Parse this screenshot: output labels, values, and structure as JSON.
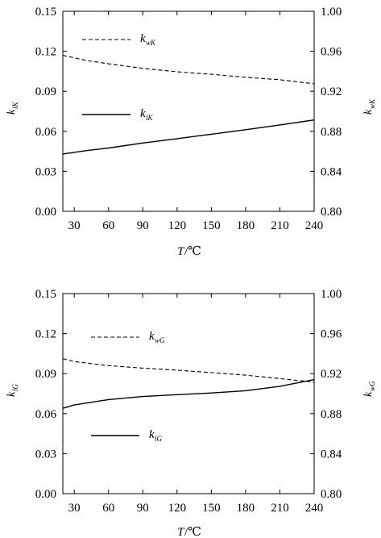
{
  "chart_data": [
    {
      "type": "line",
      "xlabel": {
        "main": "T",
        "unit": "/℃"
      },
      "ylabel_left": {
        "main": "k",
        "sub": "lK"
      },
      "ylabel_right": {
        "main": "k",
        "sub": "wK"
      },
      "xlim": [
        20,
        240
      ],
      "ylim_left": [
        0,
        0.15
      ],
      "ylim_right": [
        0.8,
        1.0
      ],
      "xticks": [
        "30",
        "60",
        "90",
        "120",
        "150",
        "180",
        "210",
        "240"
      ],
      "yticks_left": [
        "0.00",
        "0.03",
        "0.06",
        "0.09",
        "0.12",
        "0.15"
      ],
      "yticks_right": [
        "0.80",
        "0.84",
        "0.88",
        "0.92",
        "0.96",
        "1.00"
      ],
      "legend_placement": "upper-left",
      "series": [
        {
          "name": {
            "main": "k",
            "sub": "wK"
          },
          "axis": "right",
          "style": "dashed",
          "x": [
            20,
            40,
            60,
            90,
            120,
            150,
            180,
            210,
            240
          ],
          "y": [
            0.956,
            0.951,
            0.9475,
            0.943,
            0.9395,
            0.937,
            0.934,
            0.9315,
            0.9275
          ]
        },
        {
          "name": {
            "main": "k",
            "sub": "lK"
          },
          "axis": "left",
          "style": "solid",
          "x": [
            20,
            40,
            60,
            90,
            120,
            150,
            180,
            210,
            240
          ],
          "y": [
            0.043,
            0.0455,
            0.0475,
            0.0512,
            0.0545,
            0.0578,
            0.0612,
            0.0648,
            0.0685
          ]
        }
      ]
    },
    {
      "type": "line",
      "xlabel": {
        "main": "T",
        "unit": "/℃"
      },
      "ylabel_left": {
        "main": "k",
        "sub": "lG"
      },
      "ylabel_right": {
        "main": "k",
        "sub": "wG"
      },
      "xlim": [
        20,
        240
      ],
      "ylim_left": [
        0,
        0.15
      ],
      "ylim_right": [
        0.8,
        1.0
      ],
      "xticks": [
        "30",
        "60",
        "90",
        "120",
        "150",
        "180",
        "210",
        "240"
      ],
      "yticks_left": [
        "0.00",
        "0.03",
        "0.06",
        "0.09",
        "0.12",
        "0.15"
      ],
      "yticks_right": [
        "0.80",
        "0.84",
        "0.88",
        "0.92",
        "0.96",
        "1.00"
      ],
      "legend_placement": "left",
      "series": [
        {
          "name": {
            "main": "k",
            "sub": "wG"
          },
          "axis": "right",
          "style": "dashed",
          "x": [
            20,
            30,
            60,
            90,
            120,
            150,
            180,
            210,
            240
          ],
          "y": [
            0.935,
            0.932,
            0.928,
            0.9255,
            0.9235,
            0.921,
            0.9185,
            0.915,
            0.9115
          ]
        },
        {
          "name": {
            "main": "k",
            "sub": "lG"
          },
          "axis": "left",
          "style": "solid",
          "x": [
            20,
            30,
            60,
            90,
            120,
            150,
            180,
            210,
            240
          ],
          "y": [
            0.064,
            0.0665,
            0.0705,
            0.0728,
            0.0742,
            0.0755,
            0.0772,
            0.0805,
            0.0855
          ]
        }
      ]
    }
  ]
}
